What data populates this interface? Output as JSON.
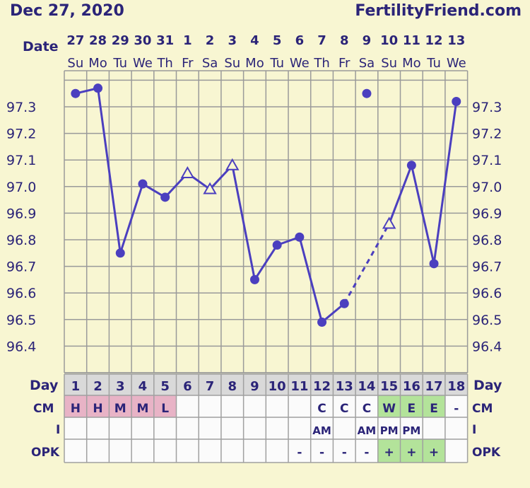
{
  "header": {
    "date": "Dec 27, 2020",
    "site": "FertilityFriend.com"
  },
  "row_labels": {
    "date": "Date",
    "day": "Day",
    "cm": "CM",
    "i": "I",
    "opk": "OPK"
  },
  "colors": {
    "line": "#4b3fbf",
    "text": "#2b2478",
    "grid": "#9a9a9a",
    "background": "#f8f6d2",
    "cm_pink": "#e8b3c6",
    "cm_green": "#b3e39a",
    "opk_green": "#b3e39a"
  },
  "chart_data": {
    "type": "line",
    "title": "",
    "ylabel": "",
    "xlabel": "",
    "ylim": [
      96.35,
      97.45
    ],
    "yticks": [
      "97.3",
      "97.2",
      "97.1",
      "97.0",
      "96.9",
      "96.8",
      "96.7",
      "96.6",
      "96.5",
      "96.4"
    ],
    "dates": [
      "27",
      "28",
      "29",
      "30",
      "31",
      "1",
      "2",
      "3",
      "4",
      "5",
      "6",
      "7",
      "8",
      "9",
      "10",
      "11",
      "12",
      "13"
    ],
    "weekdays": [
      "Su",
      "Mo",
      "Tu",
      "We",
      "Th",
      "Fr",
      "Sa",
      "Su",
      "Mo",
      "Tu",
      "We",
      "Th",
      "Fr",
      "Sa",
      "Su",
      "Mo",
      "Tu",
      "We"
    ],
    "cycle_days": [
      "1",
      "2",
      "3",
      "4",
      "5",
      "6",
      "7",
      "8",
      "9",
      "10",
      "11",
      "12",
      "13",
      "14",
      "15",
      "16",
      "17",
      "18"
    ],
    "temperatures": [
      97.35,
      97.37,
      96.75,
      97.01,
      96.96,
      97.05,
      96.99,
      97.08,
      96.65,
      96.78,
      96.81,
      96.49,
      96.56,
      97.35,
      96.86,
      97.08,
      96.71,
      97.32
    ],
    "marker": [
      "dot",
      "dot",
      "dot",
      "dot",
      "dot",
      "open-triangle",
      "open-triangle",
      "open-triangle",
      "dot",
      "dot",
      "dot",
      "dot",
      "dot",
      "dot",
      "open-triangle",
      "dot",
      "dot",
      "dot"
    ],
    "discarded_days": [
      14
    ],
    "dashed_segments": [
      [
        13,
        15
      ]
    ],
    "cm": [
      "H",
      "H",
      "M",
      "M",
      "L",
      "",
      "",
      "",
      "",
      "",
      "",
      "C",
      "C",
      "C",
      "W",
      "E",
      "E",
      "-"
    ],
    "i": [
      "",
      "",
      "",
      "",
      "",
      "",
      "",
      "",
      "",
      "",
      "",
      "AM",
      "",
      "AM",
      "PM",
      "PM",
      "",
      ""
    ],
    "opk": [
      "",
      "",
      "",
      "",
      "",
      "",
      "",
      "",
      "",
      "",
      "-",
      "-",
      "-",
      "-",
      "+",
      "+",
      "+",
      ""
    ]
  }
}
